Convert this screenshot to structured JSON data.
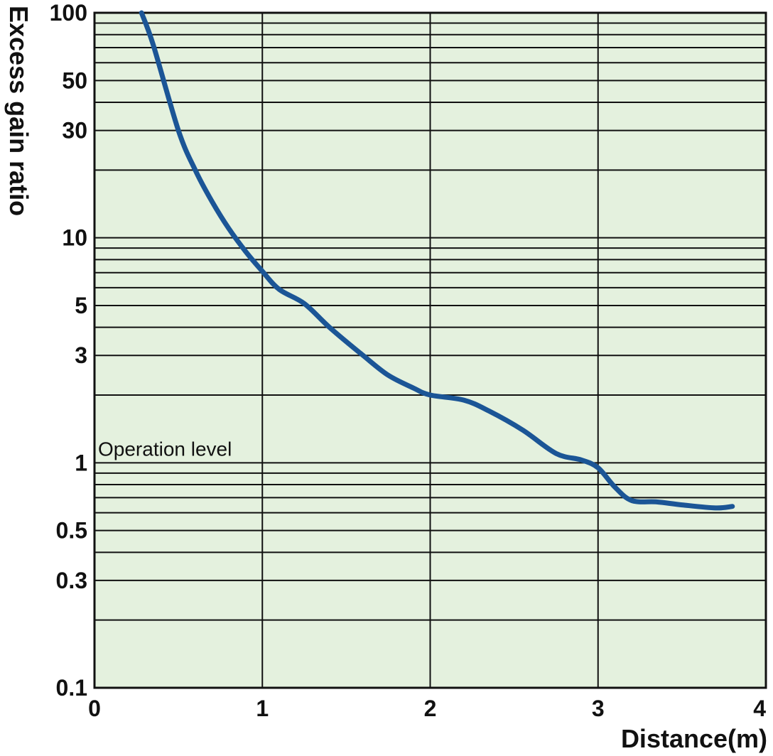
{
  "chart_data": {
    "type": "line",
    "title": "",
    "xlabel": "Distance(m)",
    "ylabel": "Excess gain ratio",
    "x_scale": "linear",
    "y_scale": "log",
    "xlim": [
      0,
      4
    ],
    "ylim": [
      0.1,
      100
    ],
    "x_ticks": [
      0,
      1,
      2,
      3,
      4
    ],
    "x_tick_labels": [
      "0",
      "1",
      "2",
      "3",
      "4"
    ],
    "y_ticks": [
      0.1,
      0.3,
      0.5,
      1,
      3,
      5,
      10,
      30,
      50,
      100
    ],
    "y_tick_labels": [
      "0.1",
      "0.3",
      "0.5",
      "1",
      "3",
      "5",
      "10",
      "30",
      "50",
      "100"
    ],
    "y_grid": [
      0.1,
      0.2,
      0.3,
      0.4,
      0.5,
      0.6,
      0.7,
      0.8,
      0.9,
      1,
      2,
      3,
      4,
      5,
      6,
      7,
      8,
      9,
      10,
      20,
      30,
      40,
      50,
      60,
      70,
      80,
      90,
      100
    ],
    "grid": true,
    "annotation": "Operation level",
    "annotation_y": 1,
    "colors": {
      "background": "#e4f1de",
      "line": "#1b5596",
      "grid": "#111111"
    },
    "series": [
      {
        "name": "",
        "points": [
          [
            0.28,
            100
          ],
          [
            0.35,
            72
          ],
          [
            0.5,
            30
          ],
          [
            0.6,
            20
          ],
          [
            0.7,
            14.5
          ],
          [
            0.8,
            11
          ],
          [
            0.9,
            8.7
          ],
          [
            1.0,
            7.1
          ],
          [
            1.1,
            5.9
          ],
          [
            1.25,
            5.1
          ],
          [
            1.4,
            4.0
          ],
          [
            1.6,
            3.0
          ],
          [
            1.75,
            2.45
          ],
          [
            1.9,
            2.15
          ],
          [
            2.0,
            2.0
          ],
          [
            2.2,
            1.9
          ],
          [
            2.35,
            1.7
          ],
          [
            2.55,
            1.4
          ],
          [
            2.75,
            1.1
          ],
          [
            2.9,
            1.03
          ],
          [
            3.0,
            0.95
          ],
          [
            3.1,
            0.78
          ],
          [
            3.2,
            0.68
          ],
          [
            3.35,
            0.67
          ],
          [
            3.5,
            0.65
          ],
          [
            3.7,
            0.63
          ],
          [
            3.8,
            0.64
          ]
        ]
      }
    ]
  }
}
